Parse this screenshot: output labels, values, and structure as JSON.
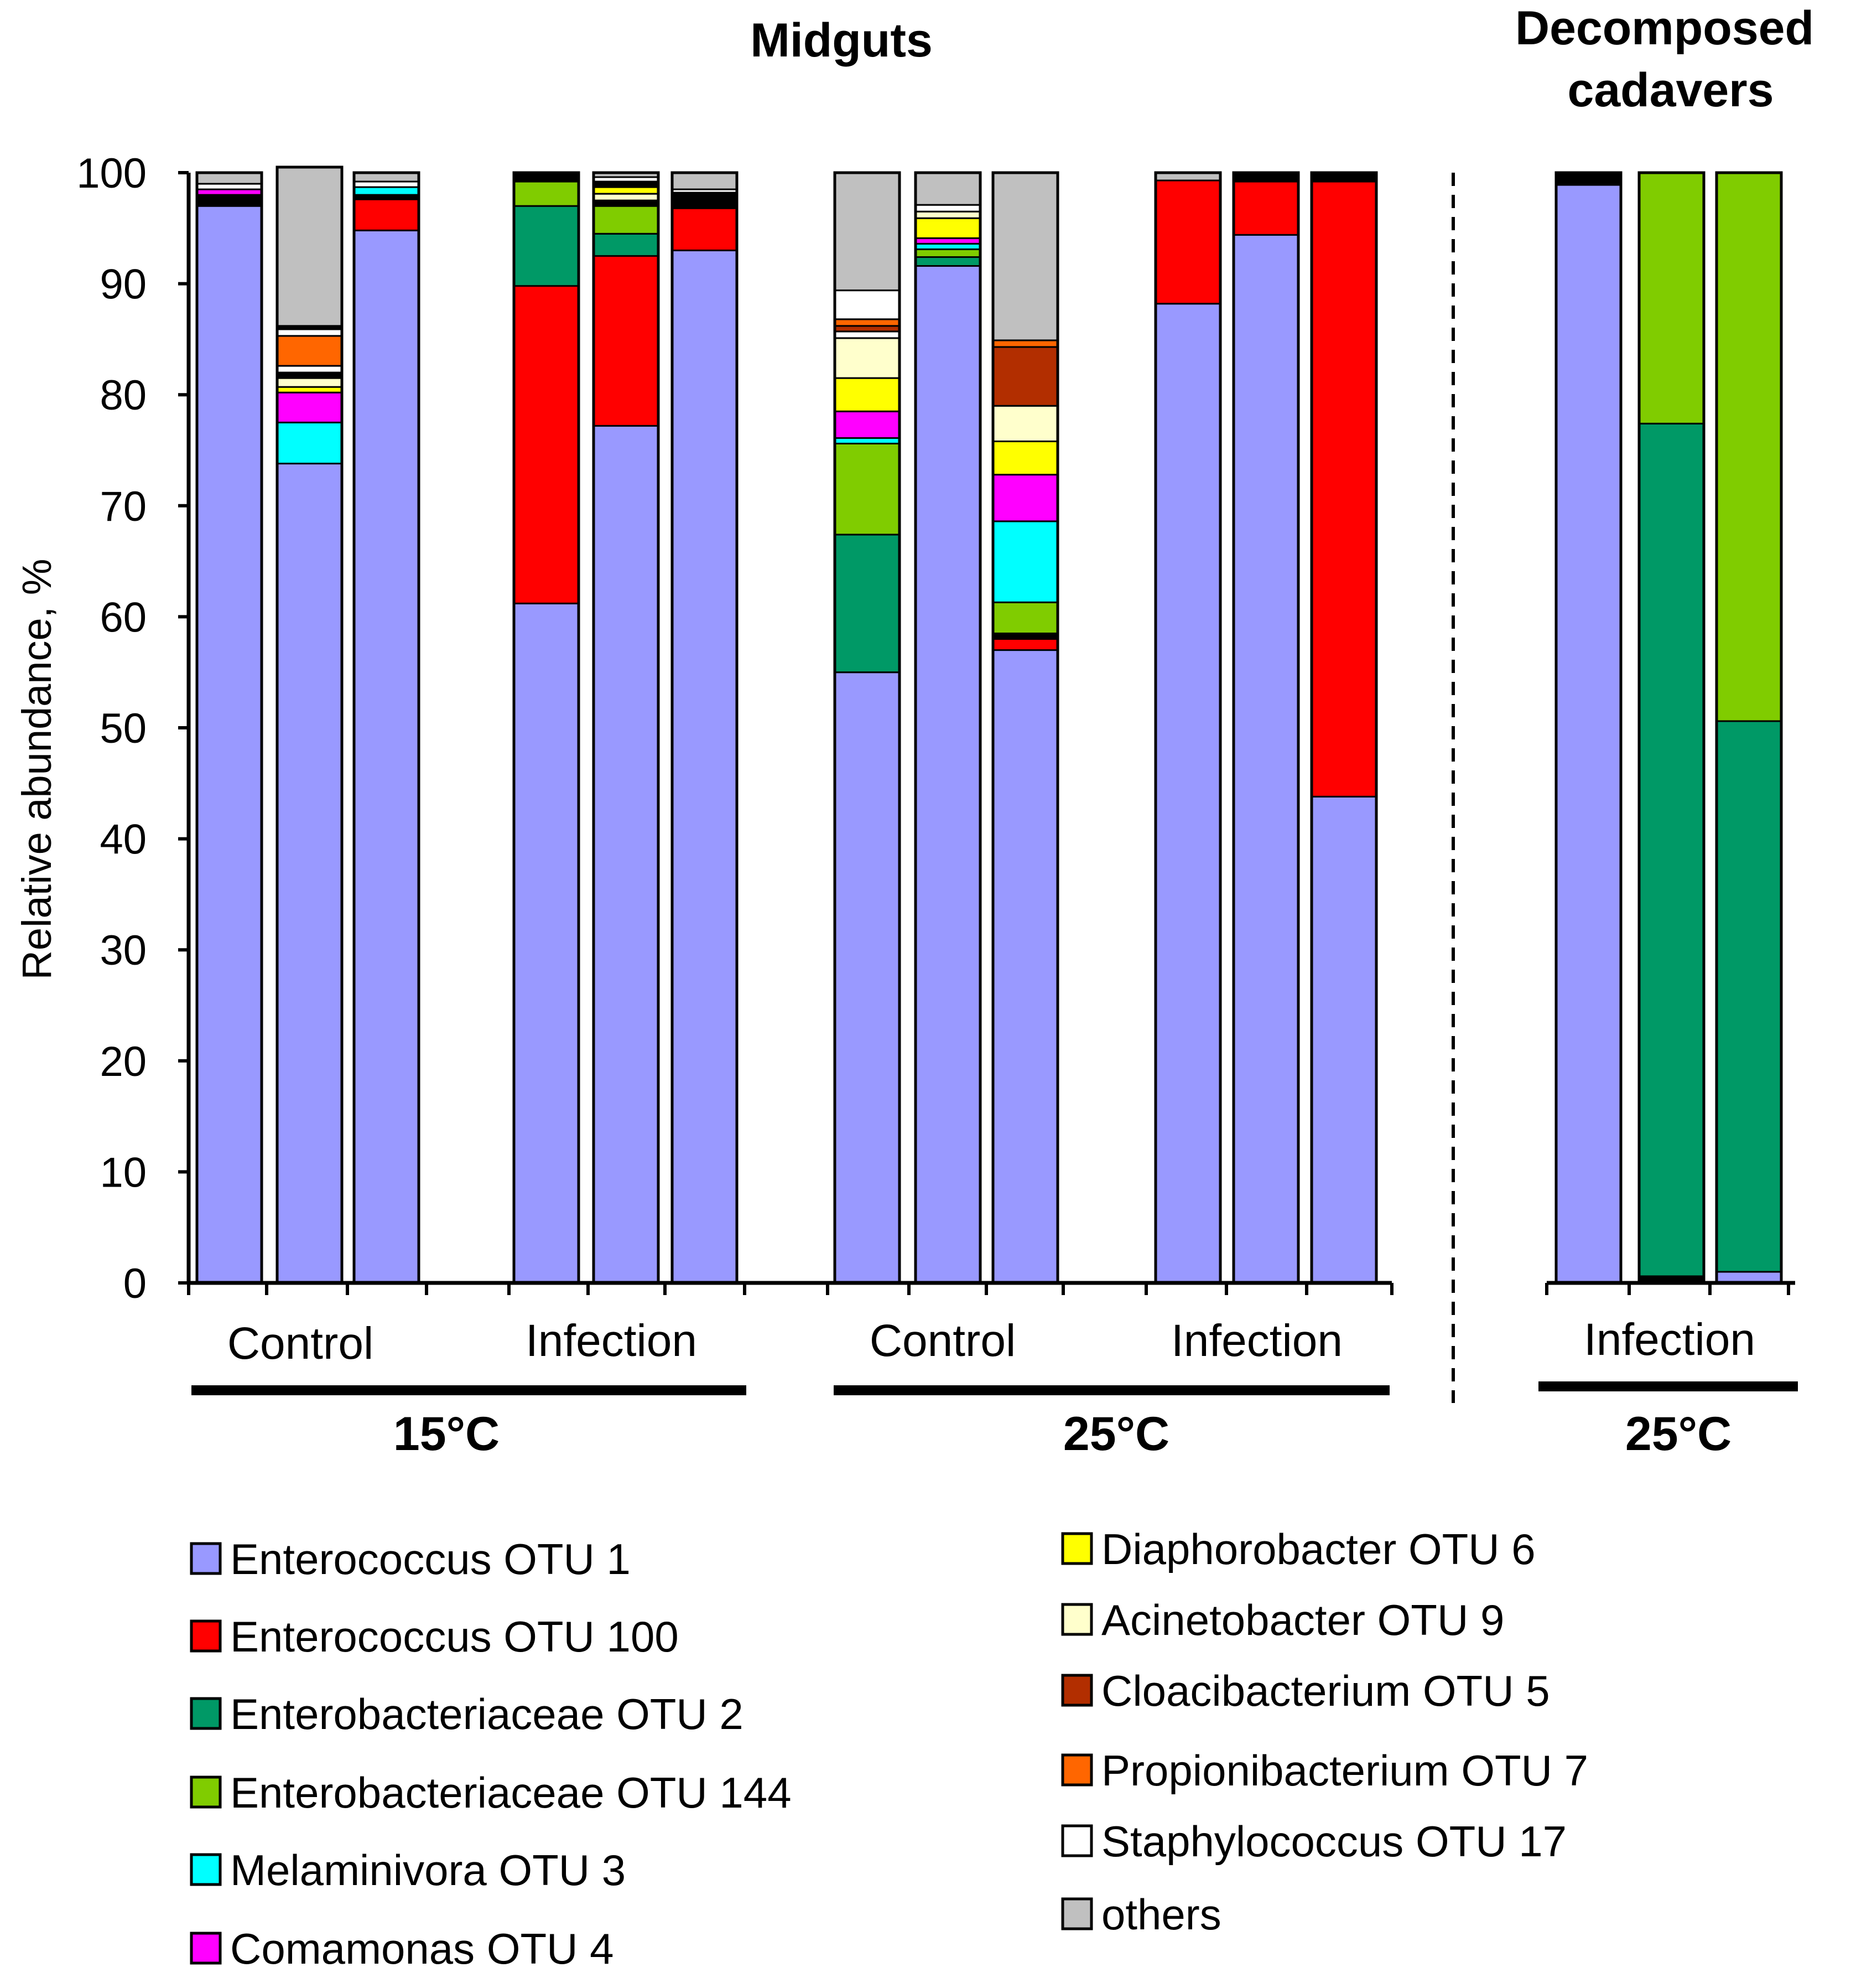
{
  "chart_data": {
    "type": "bar",
    "stacked": true,
    "ylabel": "Relative abundance, %",
    "ylim": [
      0,
      100
    ],
    "yticks": [
      0,
      10,
      20,
      30,
      40,
      50,
      60,
      70,
      80,
      90,
      100
    ],
    "panels": [
      {
        "title": "Midguts"
      },
      {
        "title": "Decomposed cadavers"
      }
    ],
    "groups": [
      {
        "label": "Control"
      },
      {
        "label": "Infection"
      },
      {
        "label": "Control"
      },
      {
        "label": "Infection"
      },
      {
        "label": "Infection"
      }
    ],
    "temperatures": [
      "15°C",
      "25°C",
      "25°C"
    ],
    "series": [
      {
        "name": "Enterococcus OTU 1",
        "color": "#9999ff"
      },
      {
        "name": "Enterococcus OTU 100",
        "color": "#ff0000"
      },
      {
        "name": "Enterobacteriaceae OTU 2",
        "color": "#009966"
      },
      {
        "name": "Enterobacteriaceae OTU 144",
        "color": "#80cc00"
      },
      {
        "name": "Melaminivora OTU 3",
        "color": "#00ffff"
      },
      {
        "name": "Comamonas OTU 4",
        "color": "#ff00ff"
      },
      {
        "name": "Diaphorobacter OTU 6",
        "color": "#ffff00"
      },
      {
        "name": "Acinetobacter OTU 9",
        "color": "#ffffcc"
      },
      {
        "name": "Cloacibacterium OTU 5",
        "color": "#b22e00"
      },
      {
        "name": "Propionibacterium OTU 7",
        "color": "#ff6600"
      },
      {
        "name": "Staphylococcus OTU 17",
        "color": "#ffffff"
      },
      {
        "name": "others",
        "color": "#c0c0c0"
      }
    ],
    "unlisted_color": "#000000",
    "bars": [
      {
        "group": 0,
        "segments": [
          {
            "s": 0,
            "v": 97.0
          },
          {
            "s": "unlisted",
            "v": 1.0
          },
          {
            "s": 5,
            "v": 0.5
          },
          {
            "s": 10,
            "v": 0.5
          },
          {
            "s": 11,
            "v": 1.0
          }
        ]
      },
      {
        "group": 0,
        "segments": [
          {
            "s": 0,
            "v": 73.8
          },
          {
            "s": 4,
            "v": 3.7
          },
          {
            "s": 5,
            "v": 2.7
          },
          {
            "s": 6,
            "v": 0.5
          },
          {
            "s": 7,
            "v": 0.8
          },
          {
            "s": "unlisted",
            "v": 0.5
          },
          {
            "s": 10,
            "v": 0.6
          },
          {
            "s": 9,
            "v": 2.7
          },
          {
            "s": 10,
            "v": 0.6
          },
          {
            "s": "unlisted",
            "v": 0.3
          },
          {
            "s": 11,
            "v": 14.3
          }
        ]
      },
      {
        "group": 0,
        "segments": [
          {
            "s": 0,
            "v": 94.8
          },
          {
            "s": 1,
            "v": 2.8
          },
          {
            "s": "unlisted",
            "v": 0.4
          },
          {
            "s": 4,
            "v": 0.7
          },
          {
            "s": 10,
            "v": 0.5
          },
          {
            "s": 11,
            "v": 0.8
          }
        ]
      },
      {
        "group": 1,
        "segments": [
          {
            "s": 0,
            "v": 61.2
          },
          {
            "s": 1,
            "v": 28.6
          },
          {
            "s": 2,
            "v": 7.2
          },
          {
            "s": 3,
            "v": 2.2
          },
          {
            "s": "unlisted",
            "v": 0.8
          }
        ]
      },
      {
        "group": 1,
        "segments": [
          {
            "s": 0,
            "v": 77.2
          },
          {
            "s": 1,
            "v": 15.3
          },
          {
            "s": 2,
            "v": 2.0
          },
          {
            "s": 3,
            "v": 2.5
          },
          {
            "s": "unlisted",
            "v": 0.5
          },
          {
            "s": 7,
            "v": 0.6
          },
          {
            "s": 6,
            "v": 0.6
          },
          {
            "s": "unlisted",
            "v": 0.5
          },
          {
            "s": 10,
            "v": 0.4
          },
          {
            "s": 11,
            "v": 0.4
          }
        ]
      },
      {
        "group": 1,
        "segments": [
          {
            "s": 0,
            "v": 93.0
          },
          {
            "s": 1,
            "v": 3.8
          },
          {
            "s": "unlisted",
            "v": 1.4
          },
          {
            "s": 10,
            "v": 0.3
          },
          {
            "s": 11,
            "v": 1.5
          }
        ]
      },
      {
        "group": 2,
        "segments": [
          {
            "s": 0,
            "v": 55.0
          },
          {
            "s": 2,
            "v": 12.4
          },
          {
            "s": 3,
            "v": 8.2
          },
          {
            "s": 4,
            "v": 0.5
          },
          {
            "s": 5,
            "v": 2.4
          },
          {
            "s": 6,
            "v": 3.0
          },
          {
            "s": 7,
            "v": 3.6
          },
          {
            "s": 10,
            "v": 0.6
          },
          {
            "s": 8,
            "v": 0.5
          },
          {
            "s": 9,
            "v": 0.6
          },
          {
            "s": 10,
            "v": 2.6
          },
          {
            "s": 11,
            "v": 10.6
          }
        ]
      },
      {
        "group": 2,
        "segments": [
          {
            "s": 0,
            "v": 91.6
          },
          {
            "s": 2,
            "v": 0.8
          },
          {
            "s": 3,
            "v": 0.7
          },
          {
            "s": 4,
            "v": 0.5
          },
          {
            "s": 5,
            "v": 0.5
          },
          {
            "s": 6,
            "v": 1.8
          },
          {
            "s": 7,
            "v": 0.6
          },
          {
            "s": 10,
            "v": 0.6
          },
          {
            "s": 11,
            "v": 2.9
          }
        ]
      },
      {
        "group": 2,
        "segments": [
          {
            "s": 0,
            "v": 57.0
          },
          {
            "s": 1,
            "v": 1.0
          },
          {
            "s": "unlisted",
            "v": 0.5
          },
          {
            "s": 3,
            "v": 2.8
          },
          {
            "s": 4,
            "v": 7.3
          },
          {
            "s": 5,
            "v": 4.2
          },
          {
            "s": 6,
            "v": 3.0
          },
          {
            "s": 7,
            "v": 3.2
          },
          {
            "s": 8,
            "v": 5.3
          },
          {
            "s": 9,
            "v": 0.6
          },
          {
            "s": 11,
            "v": 15.1
          }
        ]
      },
      {
        "group": 3,
        "segments": [
          {
            "s": 0,
            "v": 88.2
          },
          {
            "s": 1,
            "v": 11.1
          },
          {
            "s": 11,
            "v": 0.7
          }
        ]
      },
      {
        "group": 3,
        "segments": [
          {
            "s": 0,
            "v": 94.4
          },
          {
            "s": 1,
            "v": 4.8
          },
          {
            "s": "unlisted",
            "v": 0.8
          }
        ]
      },
      {
        "group": 3,
        "segments": [
          {
            "s": 0,
            "v": 43.8
          },
          {
            "s": 1,
            "v": 55.4
          },
          {
            "s": "unlisted",
            "v": 0.8
          }
        ]
      },
      {
        "group": 4,
        "segments": [
          {
            "s": 0,
            "v": 98.9
          },
          {
            "s": "unlisted",
            "v": 1.1
          }
        ]
      },
      {
        "group": 4,
        "segments": [
          {
            "s": "unlisted",
            "v": 0.6
          },
          {
            "s": 2,
            "v": 76.8
          },
          {
            "s": 3,
            "v": 22.6
          }
        ]
      },
      {
        "group": 4,
        "segments": [
          {
            "s": 0,
            "v": 1.0
          },
          {
            "s": 2,
            "v": 49.6
          },
          {
            "s": 3,
            "v": 49.4
          }
        ]
      }
    ]
  }
}
